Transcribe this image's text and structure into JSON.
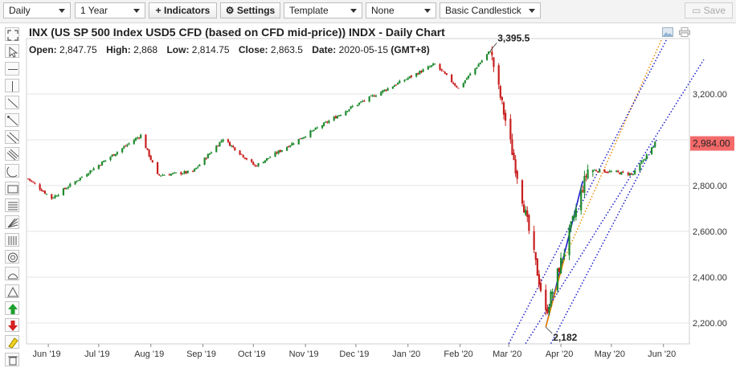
{
  "toolbar": {
    "period": "Daily",
    "range": "1 Year",
    "indicators": "+ Indicators",
    "settings": "Settings",
    "template": "Template",
    "overlay": "None",
    "chart_style": "Basic Candlestick",
    "save": "Save"
  },
  "left_tools": [
    "fullscreen-icon",
    "pointer-icon",
    "horizontal-line-icon",
    "vertical-line-icon",
    "trend-line-icon",
    "ray-icon",
    "channel-icon",
    "parallel-channel-icon",
    "arc-icon",
    "rectangle-icon",
    "fibonacci-icon",
    "fan-icon",
    "gann-icon",
    "circle-icon",
    "speed-lines-icon",
    "triangle-icon",
    "arrow-up-icon",
    "arrow-down-icon",
    "eraser-icon",
    "trash-icon"
  ],
  "header": {
    "title": "INX (US SP 500 Index USD5 CFD (based on CFD mid-price)) INDX - Daily Chart",
    "open_label": "Open:",
    "open": "2,847.75",
    "high_label": "High:",
    "high": "2,868",
    "low_label": "Low:",
    "low": "2,814.75",
    "close_label": "Close:",
    "close": "2,863.5",
    "date_label": "Date:",
    "date": "2020-05-15",
    "tz": "(GMT+8)"
  },
  "colors": {
    "up": "#1e8a2e",
    "down": "#c81e1e",
    "price_badge": "#f46a6a",
    "trend_blue": "#1c1ccc",
    "trend_orange": "#f08a00"
  },
  "chart_data": {
    "type": "candlestick",
    "title": "INX (US SP 500 Index USD5 CFD (based on CFD mid-price)) INDX - Daily Chart",
    "x_ticks": [
      "Jun '19",
      "Jul '19",
      "Aug '19",
      "Sep '19",
      "Oct '19",
      "Nov '19",
      "Dec '19",
      "Jan '20",
      "Feb '20",
      "Mar '20",
      "Apr '20",
      "May '20",
      "Jun '20"
    ],
    "y_ticks": [
      "2,200.00",
      "2,400.00",
      "2,600.00",
      "2,800.00",
      "3,000.00",
      "3,200.00"
    ],
    "y_tick_values": [
      2200,
      2400,
      2600,
      2800,
      3000,
      3200
    ],
    "ylim": [
      2120,
      3470
    ],
    "last_price": "2,984.00",
    "last_price_value": 2984,
    "annotations": [
      {
        "text": "3,395.5",
        "value": 3395.5,
        "date": "2020-02-19"
      },
      {
        "text": "2,182",
        "value": 2182,
        "date": "2020-03-23"
      }
    ],
    "key_closes": [
      {
        "date": "2019-05-20",
        "close": 2830
      },
      {
        "date": "2019-06-03",
        "close": 2745
      },
      {
        "date": "2019-07-26",
        "close": 3020
      },
      {
        "date": "2019-08-05",
        "close": 2845
      },
      {
        "date": "2019-08-26",
        "close": 2860
      },
      {
        "date": "2019-09-13",
        "close": 3005
      },
      {
        "date": "2019-10-02",
        "close": 2885
      },
      {
        "date": "2019-11-29",
        "close": 3145
      },
      {
        "date": "2020-01-17",
        "close": 3330
      },
      {
        "date": "2020-01-31",
        "close": 3225
      },
      {
        "date": "2020-02-19",
        "close": 3390
      },
      {
        "date": "2020-03-09",
        "close": 2745
      },
      {
        "date": "2020-03-23",
        "close": 2240
      },
      {
        "date": "2020-04-17",
        "close": 2870
      },
      {
        "date": "2020-05-14",
        "close": 2850
      },
      {
        "date": "2020-05-27",
        "close": 2984
      }
    ],
    "trend_lines": [
      {
        "color": "blue",
        "style": "solid",
        "from": {
          "date": "2020-03-23",
          "value": 2182
        },
        "to": {
          "date": "2020-04-14",
          "value": 2820
        }
      },
      {
        "color": "orange",
        "style": "solid",
        "from": {
          "date": "2020-03-23",
          "value": 2182
        },
        "to": {
          "date": "2020-04-03",
          "value": 2480
        }
      },
      {
        "color": "orange",
        "style": "dotted",
        "from": {
          "date": "2020-04-03",
          "value": 2480
        },
        "to": {
          "date": "2020-05-31",
          "value": 3440
        }
      },
      {
        "color": "blue",
        "style": "dotted",
        "from": {
          "date": "2020-03-01",
          "value": 2110
        },
        "to": {
          "date": "2020-06-03",
          "value": 3440
        }
      },
      {
        "color": "blue",
        "style": "dotted",
        "from": {
          "date": "2020-03-11",
          "value": 2110
        },
        "to": {
          "date": "2020-06-25",
          "value": 3350
        }
      },
      {
        "color": "blue",
        "style": "dotted",
        "from": {
          "date": "2020-03-26",
          "value": 2110
        },
        "to": {
          "date": "2020-05-28",
          "value": 3000
        }
      }
    ]
  }
}
